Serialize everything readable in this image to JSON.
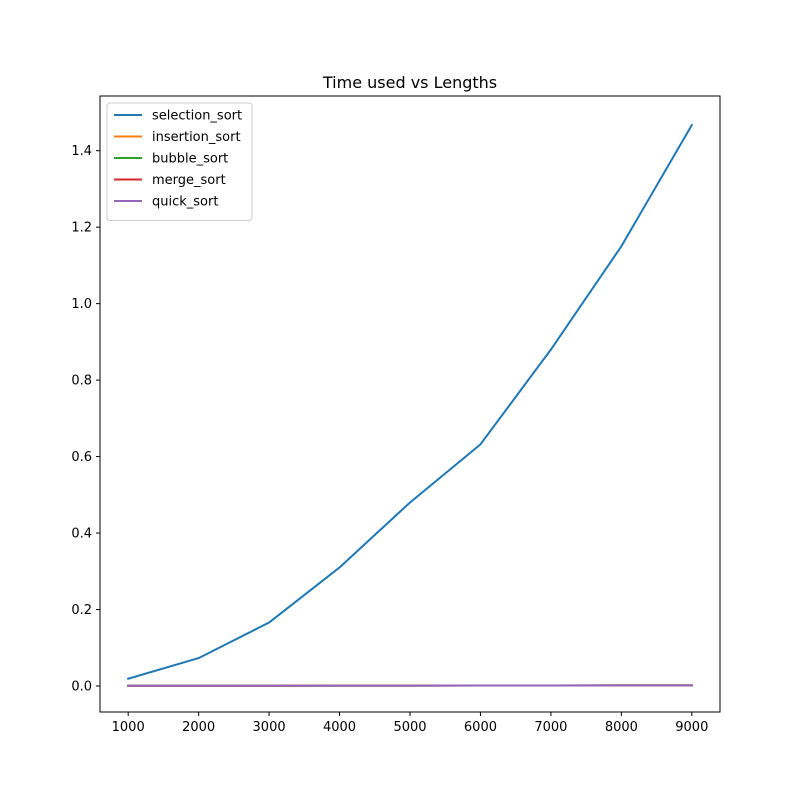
{
  "chart_data": {
    "type": "line",
    "title": "Time used vs Lengths",
    "xlabel": "",
    "ylabel": "",
    "x": [
      1000,
      2000,
      3000,
      4000,
      5000,
      6000,
      7000,
      8000,
      9000
    ],
    "xlim": [
      600,
      9400
    ],
    "ylim": [
      -0.068,
      1.543
    ],
    "xticks": [
      1000,
      2000,
      3000,
      4000,
      5000,
      6000,
      7000,
      8000,
      9000
    ],
    "xtick_labels": [
      "1000",
      "2000",
      "3000",
      "4000",
      "5000",
      "6000",
      "7000",
      "8000",
      "9000"
    ],
    "yticks": [
      0.0,
      0.2,
      0.4,
      0.6,
      0.8,
      1.0,
      1.2,
      1.4
    ],
    "ytick_labels": [
      "0.0",
      "0.2",
      "0.4",
      "0.6",
      "0.8",
      "1.0",
      "1.2",
      "1.4"
    ],
    "grid": false,
    "legend_position": "top-left",
    "series": [
      {
        "name": "selection_sort",
        "color": "#1f77b4",
        "values": [
          0.019,
          0.073,
          0.166,
          0.31,
          0.48,
          0.632,
          0.88,
          1.15,
          1.467
        ]
      },
      {
        "name": "insertion_sort",
        "color": "#ff7f0e",
        "values": [
          0.0005,
          0.0007,
          0.0008,
          0.001,
          0.0011,
          0.0013,
          0.0014,
          0.0015,
          0.0017
        ]
      },
      {
        "name": "bubble_sort",
        "color": "#2ca02c",
        "values": [
          0.0005,
          0.0007,
          0.0008,
          0.001,
          0.0011,
          0.0013,
          0.0014,
          0.0015,
          0.0017
        ]
      },
      {
        "name": "merge_sort",
        "color": "#d62728",
        "values": [
          0.0005,
          0.0007,
          0.0008,
          0.001,
          0.0011,
          0.0013,
          0.0014,
          0.0015,
          0.0017
        ]
      },
      {
        "name": "quick_sort",
        "color": "#9467bd",
        "values": [
          0.0005,
          0.0007,
          0.0008,
          0.001,
          0.0011,
          0.0013,
          0.0014,
          0.0015,
          0.0017
        ]
      }
    ]
  }
}
